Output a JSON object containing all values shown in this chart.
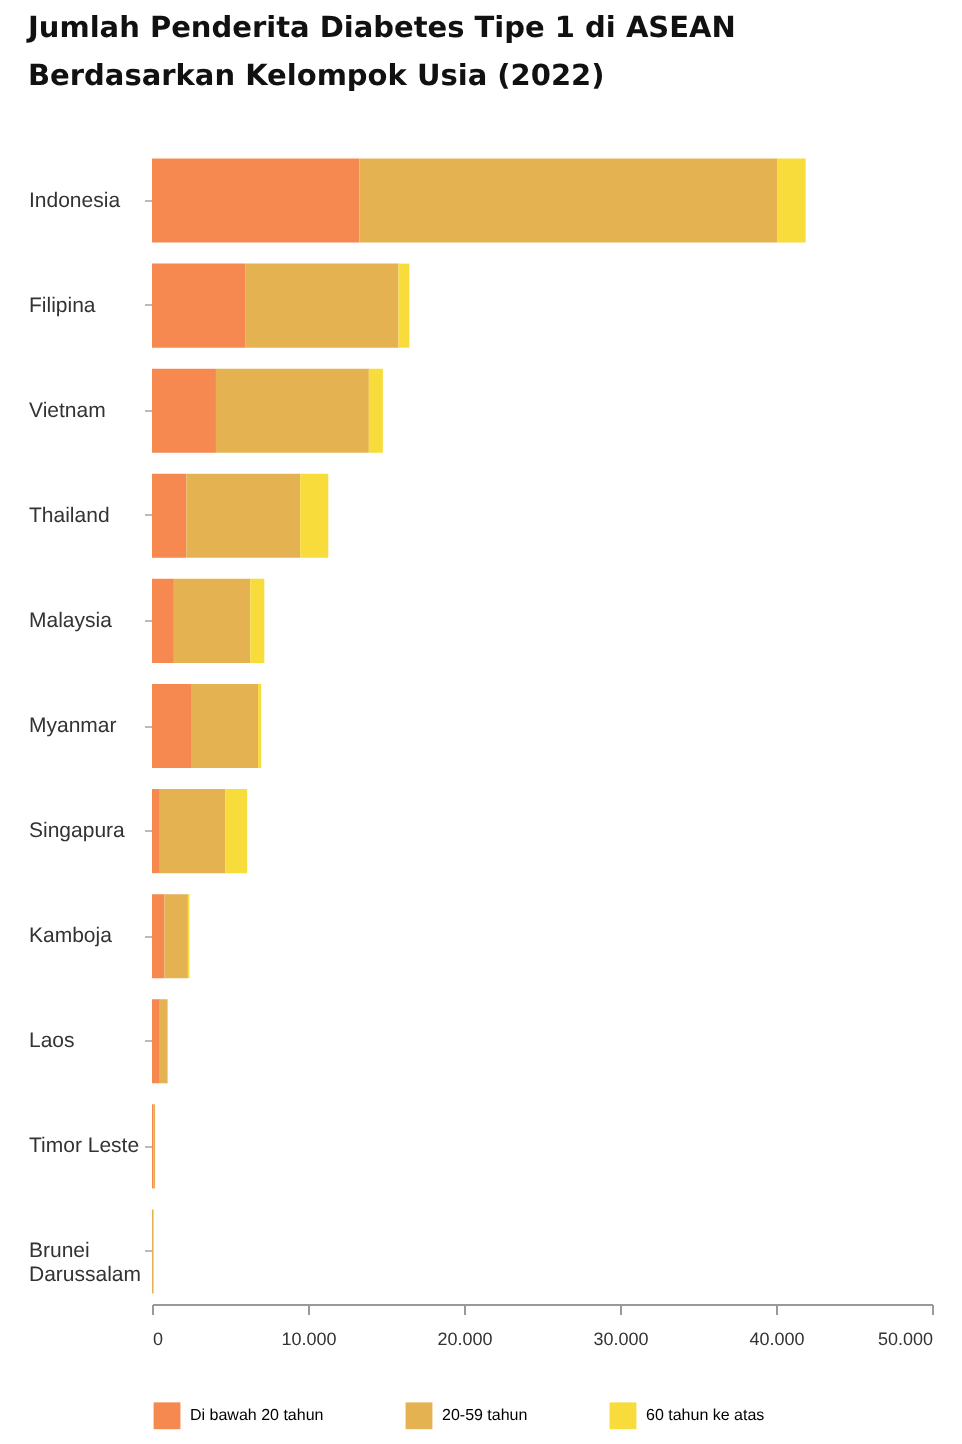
{
  "chart_data": {
    "type": "bar",
    "orientation": "horizontal",
    "stacked": true,
    "title": "Jumlah Penderita Diabetes Tipe 1 di ASEAN\nBerdasarkan Kelompok Usia (2022)",
    "categories": [
      "Indonesia",
      "Filipina",
      "Vietnam",
      "Thailand",
      "Malaysia",
      "Myanmar",
      "Singapura",
      "Kamboja",
      "Laos",
      "Timor Leste",
      "Brunei Darussalam"
    ],
    "series": [
      {
        "name": "Di bawah 20 tahun",
        "color": "#f5894f",
        "values": [
          13300,
          6000,
          4100,
          2200,
          1400,
          2500,
          500,
          800,
          500,
          100,
          0
        ]
      },
      {
        "name": "20-59 tahun",
        "color": "#e5b251",
        "values": [
          26800,
          9800,
          9800,
          7300,
          4900,
          4300,
          4200,
          1500,
          500,
          100,
          100
        ]
      },
      {
        "name": "60 tahun ke atas",
        "color": "#f7dc3b",
        "values": [
          1800,
          700,
          900,
          1800,
          900,
          200,
          1400,
          100,
          0,
          0,
          0
        ]
      }
    ],
    "xlim": [
      0,
      50000
    ],
    "xticks": [
      0,
      {
        "value": 10000,
        "label": "10.000"
      },
      {
        "value": 20000,
        "label": "20.000"
      },
      {
        "value": 30000,
        "label": "30.000"
      },
      {
        "value": 40000,
        "label": "40.000"
      },
      {
        "value": 50000,
        "label": "50.000"
      }
    ],
    "grid": false,
    "legend": "bottom"
  }
}
